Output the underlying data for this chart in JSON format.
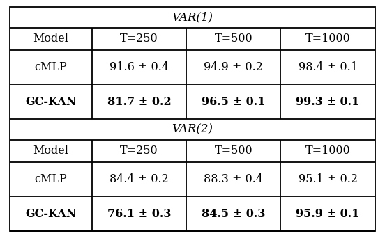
{
  "title1": "VAR(1)",
  "title2": "VAR(2)",
  "headers": [
    "Model",
    "T=250",
    "T=500",
    "T=1000"
  ],
  "var1_rows": [
    [
      "cMLP",
      "91.6 ± 0.4",
      "94.9 ± 0.2",
      "98.4 ± 0.1"
    ],
    [
      "GC-KAN",
      "81.7 ± 0.2",
      "96.5 ± 0.1",
      "99.3 ± 0.1"
    ]
  ],
  "var2_rows": [
    [
      "cMLP",
      "84.4 ± 0.2",
      "88.3 ± 0.4",
      "95.1 ± 0.2"
    ],
    [
      "GC-KAN",
      "76.1 ± 0.3",
      "84.5 ± 0.3",
      "95.9 ± 0.1"
    ]
  ],
  "bold_model": "GC-KAN",
  "background_color": "#ffffff",
  "text_color": "#000000",
  "line_color": "#000000",
  "font_size": 11.5,
  "title_font_size": 12
}
